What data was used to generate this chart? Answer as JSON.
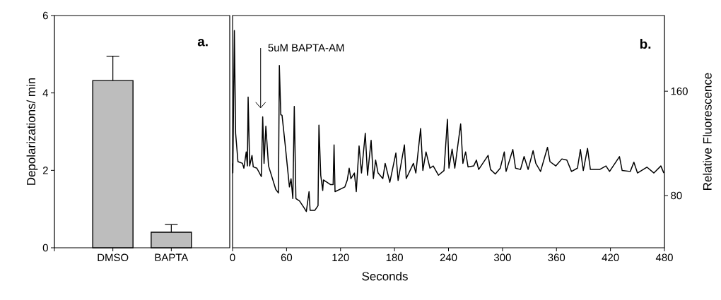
{
  "chart_data": [
    {
      "type": "bar",
      "categories": [
        "DMSO",
        "BAPTA"
      ],
      "values": [
        4.32,
        0.4
      ],
      "errors": [
        [
          4.32,
          4.95
        ],
        [
          0.4,
          0.6
        ]
      ],
      "color": "#bdbdbd",
      "ylim": [
        0,
        6
      ],
      "yticks": [
        0,
        2,
        4,
        6
      ],
      "ylabel": "Depolarizations/ min",
      "annotations": [
        "a."
      ]
    },
    {
      "type": "line",
      "color": "#000000",
      "xlim": [
        0,
        480
      ],
      "xticks": [
        0,
        60,
        120,
        180,
        240,
        300,
        360,
        420,
        480
      ],
      "ylim": [
        40,
        218
      ],
      "yticks": [
        80,
        160
      ],
      "xlabel": "Seconds",
      "ylabel": "Relative Fluorescence",
      "annotations": [
        "b.",
        "5uM BAPTA-AM"
      ],
      "x": [
        0,
        0.3,
        2,
        3.4,
        6,
        11,
        12.6,
        15.2,
        16.5,
        17.3,
        19,
        21.6,
        23,
        27,
        32,
        33.5,
        35,
        37,
        40,
        48,
        51,
        52,
        53.6,
        55,
        58.5,
        63.2,
        65,
        67,
        68.6,
        70.4,
        74.4,
        79.6,
        82,
        85,
        86.2,
        91.5,
        95,
        96,
        98,
        100.2,
        101,
        109,
        111.8,
        112.8,
        113.9,
        124.8,
        127.5,
        129.6,
        131.5,
        135.4,
        137.5,
        140.6,
        143.3,
        147.5,
        150,
        154,
        156.5,
        159,
        161.7,
        167,
        169.6,
        174.8,
        181.5,
        184,
        191,
        193,
        201,
        203.7,
        209,
        211.5,
        215,
        219.4,
        223,
        228.8,
        235,
        238.8,
        240.5,
        244,
        247,
        253.5,
        256,
        259,
        261.7,
        268,
        271,
        273.5,
        284,
        286.7,
        292,
        297.5,
        302,
        304,
        311.5,
        314.5,
        320,
        324,
        328.5,
        334,
        337,
        342.3,
        350,
        352.8,
        359.3,
        366,
        371.5,
        376.7,
        383.3,
        386.6,
        389.8,
        394.5,
        397.7,
        408,
        415,
        419,
        430,
        433,
        442,
        446,
        450,
        460.5,
        468.3,
        476,
        479.3
      ],
      "values": [
        104.7,
        97.3,
        206.5,
        127.8,
        106,
        104.7,
        101,
        113.5,
        102.7,
        155.5,
        102.7,
        110.8,
        102,
        101,
        94.6,
        140.3,
        104.7,
        133.2,
        102.7,
        84.8,
        82,
        179.7,
        142,
        141.5,
        118.8,
        86.6,
        92.9,
        77.7,
        148.3,
        77.7,
        75.9,
        70.5,
        67.8,
        83,
        68.7,
        68.7,
        72.3,
        134,
        95.6,
        83.9,
        92,
        88.4,
        88.4,
        118.8,
        83,
        86.6,
        92,
        101,
        93,
        97.3,
        83,
        118,
        97.3,
        127.8,
        95.6,
        122.4,
        93,
        107.2,
        97.3,
        93,
        104.7,
        90.2,
        112.6,
        91.6,
        118.8,
        93,
        104.7,
        97.3,
        131.4,
        99.2,
        113.5,
        101,
        102.7,
        95.6,
        99.2,
        138.5,
        101,
        115.6,
        101,
        134.9,
        104.7,
        113.5,
        102,
        102.7,
        107.2,
        100,
        110.8,
        100,
        96.5,
        101,
        113.5,
        98.5,
        115.3,
        101,
        100,
        109.9,
        100,
        114.4,
        104.7,
        98.5,
        117,
        106,
        102.7,
        108.1,
        107.2,
        98.5,
        101,
        115.3,
        99.2,
        116.2,
        100,
        100,
        102.7,
        98.5,
        109.9,
        99.2,
        98.5,
        105.6,
        97.3,
        101.8,
        97.3,
        102.7,
        97.3
      ]
    }
  ]
}
